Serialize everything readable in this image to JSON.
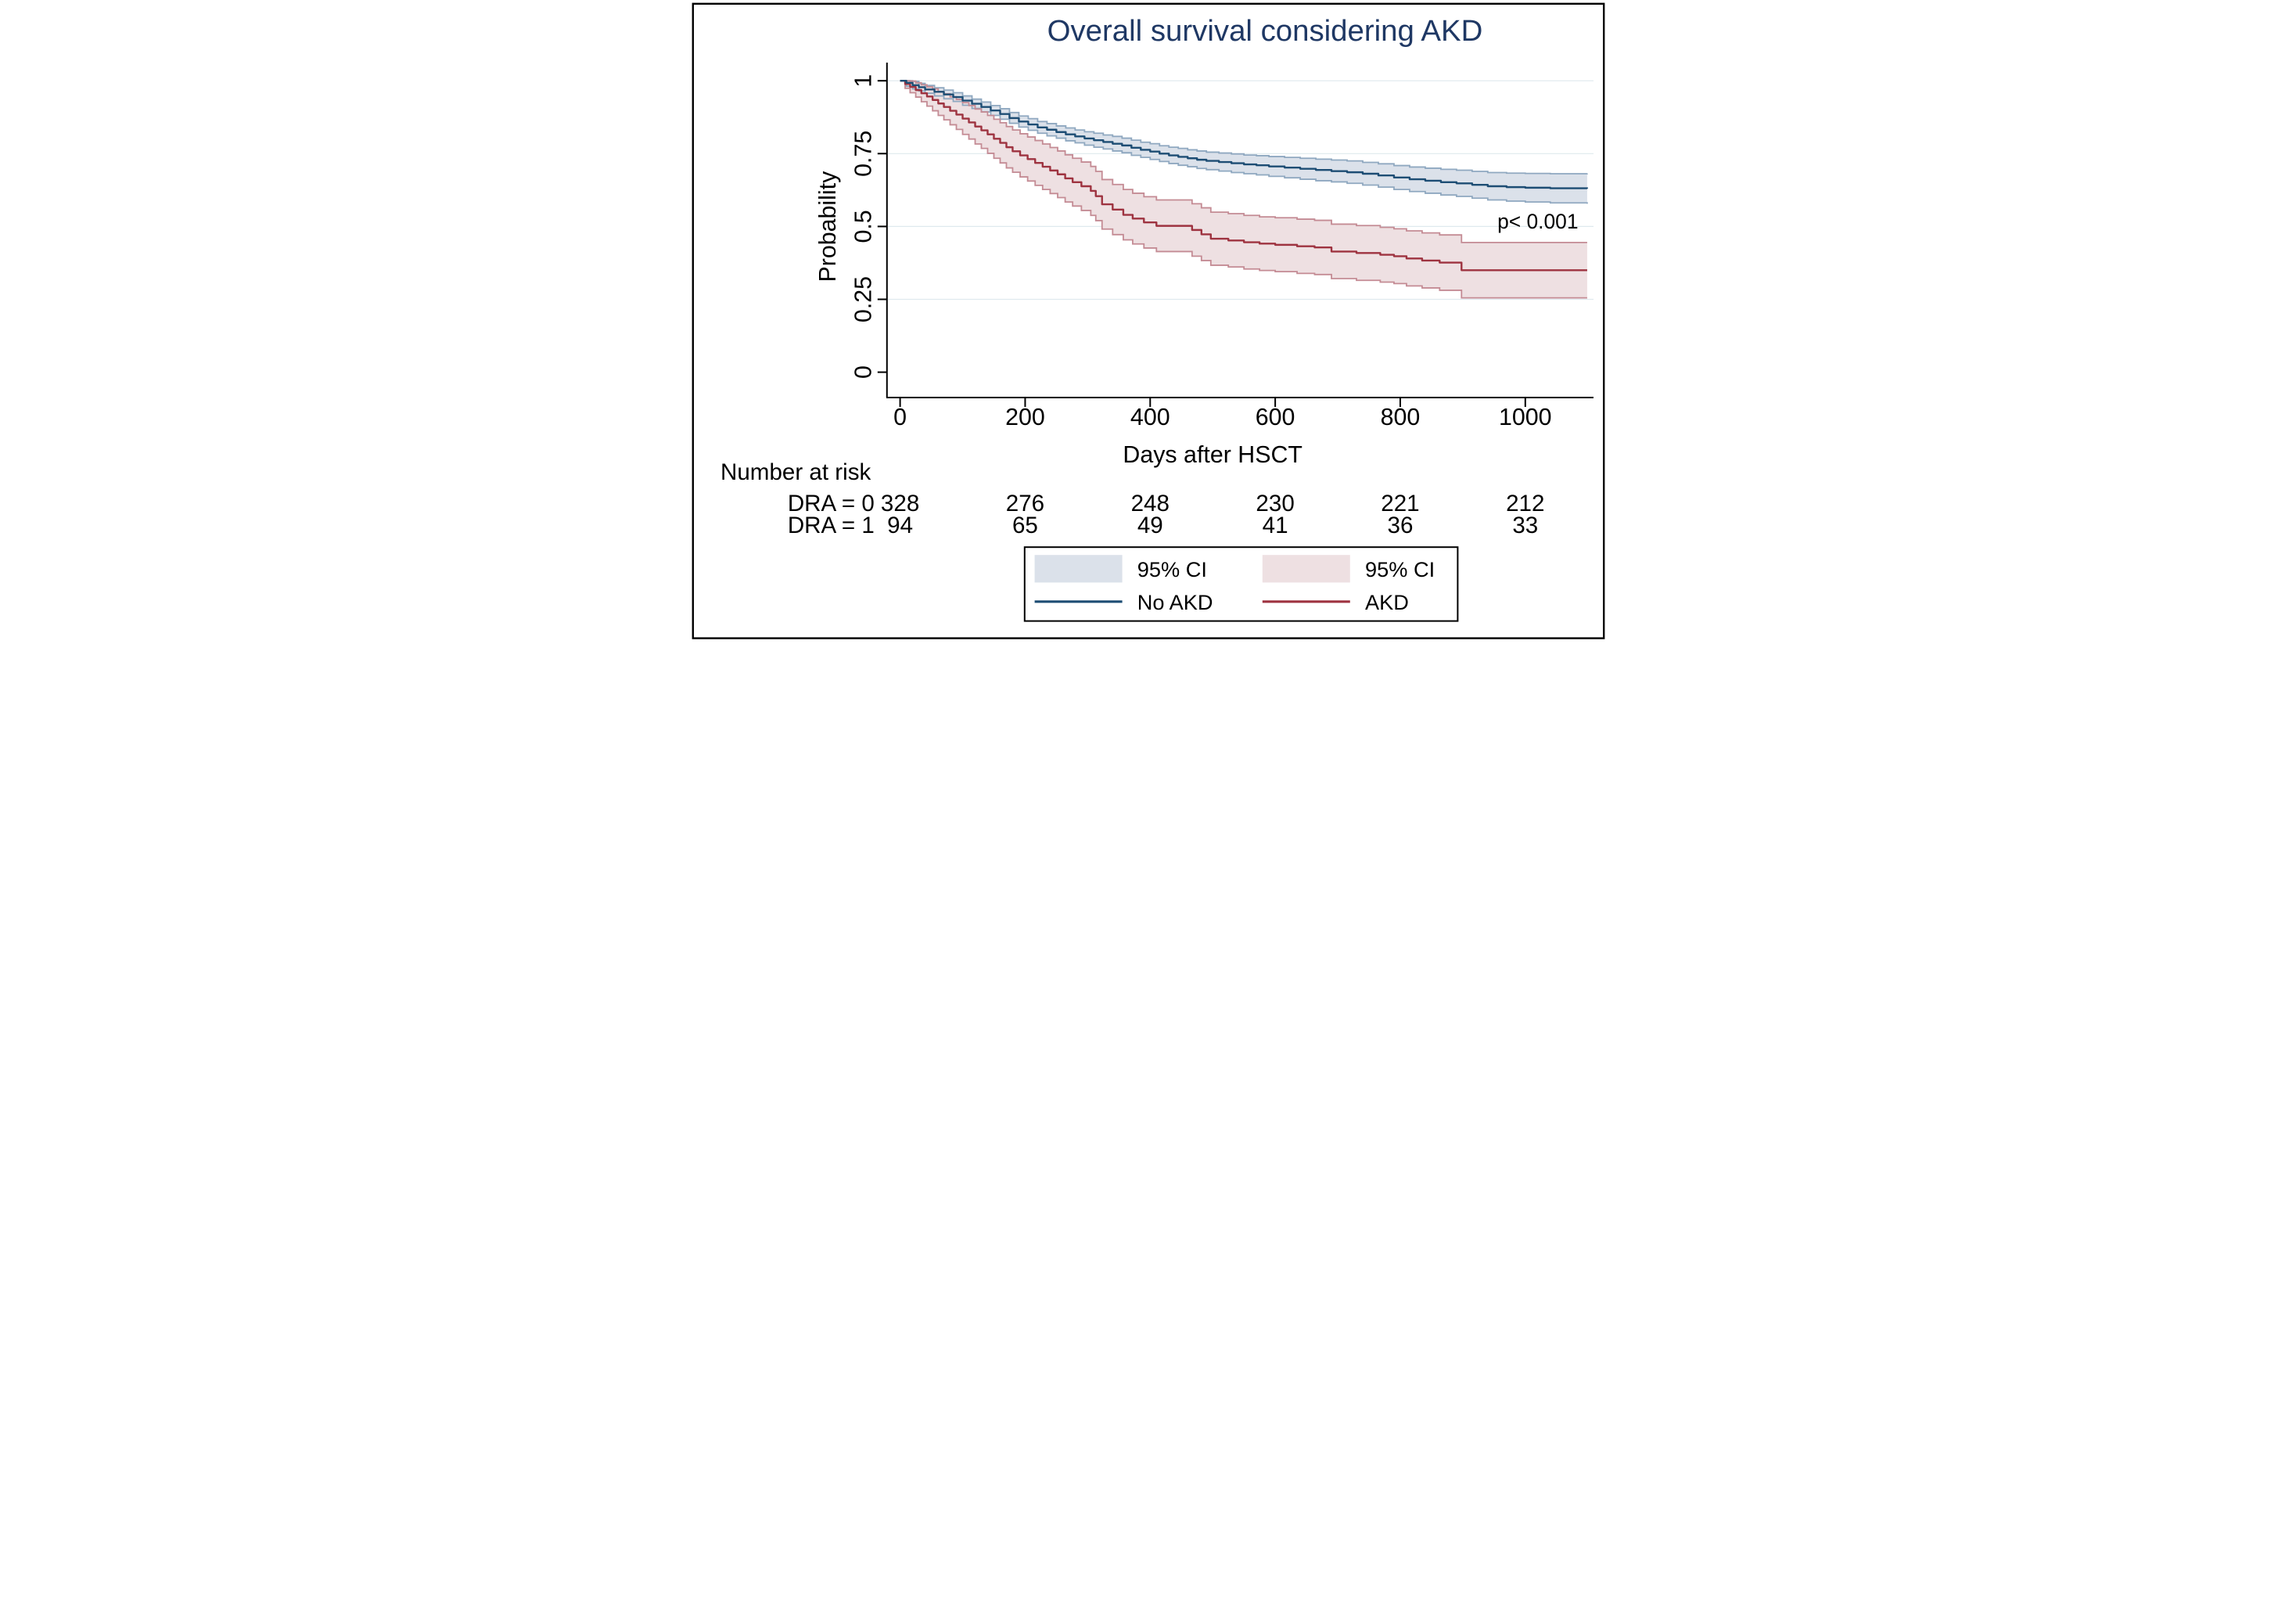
{
  "figure": {
    "title": "Overall survival considering AKD",
    "p_value_label": "p< 0.001"
  },
  "colors": {
    "title": "#1f3864",
    "text": "#000000",
    "axis": "#000000",
    "gridline": "#dfe9ee",
    "figure_border": "#000000",
    "background": "#ffffff",
    "no_akd_line": "#1d4d74",
    "no_akd_ci_edge": "#8fa8c0",
    "no_akd_ci_fill": "#dbe1ea",
    "akd_line": "#9e3340",
    "akd_ci_edge": "#c48b94",
    "akd_ci_fill": "#eee0e2"
  },
  "axes": {
    "x": {
      "label": "Days after HSCT",
      "ticks": [
        0,
        200,
        400,
        600,
        800,
        1000
      ],
      "range": [
        0,
        1099
      ]
    },
    "y": {
      "label": "Probability",
      "ticks": [
        1,
        0.75,
        0.5,
        0.25,
        0
      ],
      "tick_labels": [
        "1",
        "0.75",
        "0.5",
        "0.25",
        "0"
      ],
      "range": [
        0,
        1
      ]
    }
  },
  "chart_data": {
    "type": "line",
    "subtype": "kaplan-meier-step",
    "title": "Overall survival considering AKD",
    "xlabel": "Days after HSCT",
    "ylabel": "Probability",
    "xlim": [
      0,
      1099
    ],
    "ylim": [
      0,
      1
    ],
    "grid": "horizontal",
    "legend_position": "bottom-center",
    "annotations": [
      {
        "text": "p< 0.001",
        "x": 1020,
        "y": 0.5
      }
    ],
    "series": [
      {
        "name": "No AKD",
        "ci_label": "95% CI",
        "point_format": [
          "day",
          "survival",
          "ci_lower",
          "ci_upper"
        ],
        "points": [
          [
            0,
            1,
            1,
            1
          ],
          [
            10,
            0.993,
            0.981,
            1
          ],
          [
            20,
            0.985,
            0.972,
            0.998
          ],
          [
            30,
            0.978,
            0.965,
            0.991
          ],
          [
            40,
            0.97,
            0.957,
            0.984
          ],
          [
            55,
            0.962,
            0.948,
            0.976
          ],
          [
            70,
            0.953,
            0.938,
            0.968
          ],
          [
            85,
            0.944,
            0.929,
            0.959
          ],
          [
            100,
            0.932,
            0.916,
            0.948
          ],
          [
            115,
            0.921,
            0.905,
            0.937
          ],
          [
            130,
            0.91,
            0.893,
            0.927
          ],
          [
            145,
            0.898,
            0.881,
            0.915
          ],
          [
            160,
            0.886,
            0.868,
            0.904
          ],
          [
            175,
            0.872,
            0.854,
            0.891
          ],
          [
            190,
            0.86,
            0.841,
            0.879
          ],
          [
            205,
            0.85,
            0.83,
            0.87
          ],
          [
            220,
            0.84,
            0.82,
            0.86
          ],
          [
            235,
            0.832,
            0.811,
            0.853
          ],
          [
            250,
            0.824,
            0.803,
            0.845
          ],
          [
            265,
            0.816,
            0.794,
            0.838
          ],
          [
            280,
            0.809,
            0.787,
            0.831
          ],
          [
            295,
            0.802,
            0.779,
            0.825
          ],
          [
            310,
            0.796,
            0.772,
            0.82
          ],
          [
            325,
            0.79,
            0.766,
            0.814
          ],
          [
            340,
            0.784,
            0.759,
            0.809
          ],
          [
            355,
            0.778,
            0.753,
            0.803
          ],
          [
            370,
            0.77,
            0.744,
            0.796
          ],
          [
            385,
            0.763,
            0.737,
            0.789
          ],
          [
            400,
            0.757,
            0.73,
            0.784
          ],
          [
            415,
            0.75,
            0.723,
            0.777
          ],
          [
            430,
            0.744,
            0.716,
            0.772
          ],
          [
            445,
            0.739,
            0.71,
            0.768
          ],
          [
            460,
            0.734,
            0.705,
            0.763
          ],
          [
            475,
            0.729,
            0.699,
            0.759
          ],
          [
            490,
            0.725,
            0.695,
            0.755
          ],
          [
            510,
            0.721,
            0.69,
            0.752
          ],
          [
            530,
            0.717,
            0.685,
            0.749
          ],
          [
            550,
            0.713,
            0.681,
            0.745
          ],
          [
            570,
            0.71,
            0.677,
            0.743
          ],
          [
            590,
            0.706,
            0.672,
            0.74
          ],
          [
            615,
            0.702,
            0.667,
            0.737
          ],
          [
            640,
            0.698,
            0.662,
            0.734
          ],
          [
            665,
            0.694,
            0.657,
            0.731
          ],
          [
            690,
            0.69,
            0.653,
            0.728
          ],
          [
            715,
            0.686,
            0.648,
            0.725
          ],
          [
            740,
            0.681,
            0.642,
            0.72
          ],
          [
            765,
            0.675,
            0.635,
            0.715
          ],
          [
            790,
            0.668,
            0.627,
            0.709
          ],
          [
            815,
            0.662,
            0.62,
            0.704
          ],
          [
            840,
            0.657,
            0.614,
            0.7
          ],
          [
            865,
            0.652,
            0.608,
            0.696
          ],
          [
            890,
            0.648,
            0.603,
            0.693
          ],
          [
            915,
            0.643,
            0.597,
            0.689
          ],
          [
            940,
            0.638,
            0.591,
            0.685
          ],
          [
            970,
            0.635,
            0.587,
            0.683
          ],
          [
            1000,
            0.633,
            0.584,
            0.682
          ],
          [
            1040,
            0.631,
            0.581,
            0.681
          ],
          [
            1099,
            0.63,
            0.578,
            0.682
          ]
        ]
      },
      {
        "name": "AKD",
        "ci_label": "95% CI",
        "point_format": [
          "day",
          "survival",
          "ci_lower",
          "ci_upper"
        ],
        "points": [
          [
            0,
            1,
            1,
            1
          ],
          [
            8,
            0.989,
            0.974,
            1
          ],
          [
            16,
            0.979,
            0.959,
            0.999
          ],
          [
            25,
            0.968,
            0.944,
            0.993
          ],
          [
            34,
            0.957,
            0.928,
            0.986
          ],
          [
            43,
            0.946,
            0.913,
            0.979
          ],
          [
            52,
            0.934,
            0.897,
            0.972
          ],
          [
            61,
            0.922,
            0.881,
            0.963
          ],
          [
            70,
            0.91,
            0.866,
            0.955
          ],
          [
            80,
            0.897,
            0.849,
            0.945
          ],
          [
            90,
            0.884,
            0.833,
            0.936
          ],
          [
            100,
            0.87,
            0.816,
            0.925
          ],
          [
            110,
            0.857,
            0.8,
            0.915
          ],
          [
            120,
            0.843,
            0.783,
            0.903
          ],
          [
            130,
            0.83,
            0.768,
            0.893
          ],
          [
            140,
            0.816,
            0.751,
            0.881
          ],
          [
            150,
            0.801,
            0.734,
            0.868
          ],
          [
            160,
            0.787,
            0.718,
            0.856
          ],
          [
            170,
            0.772,
            0.701,
            0.843
          ],
          [
            180,
            0.758,
            0.686,
            0.831
          ],
          [
            192,
            0.744,
            0.67,
            0.818
          ],
          [
            204,
            0.731,
            0.656,
            0.807
          ],
          [
            216,
            0.718,
            0.641,
            0.795
          ],
          [
            228,
            0.705,
            0.627,
            0.783
          ],
          [
            240,
            0.692,
            0.613,
            0.771
          ],
          [
            252,
            0.679,
            0.599,
            0.759
          ],
          [
            264,
            0.665,
            0.584,
            0.746
          ],
          [
            276,
            0.652,
            0.57,
            0.734
          ],
          [
            290,
            0.638,
            0.555,
            0.721
          ],
          [
            305,
            0.622,
            0.538,
            0.706
          ],
          [
            313,
            0.604,
            0.52,
            0.689
          ],
          [
            323,
            0.576,
            0.491,
            0.661
          ],
          [
            340,
            0.558,
            0.472,
            0.644
          ],
          [
            357,
            0.54,
            0.454,
            0.627
          ],
          [
            372,
            0.527,
            0.44,
            0.614
          ],
          [
            390,
            0.514,
            0.426,
            0.602
          ],
          [
            410,
            0.502,
            0.414,
            0.591
          ],
          [
            467,
            0.488,
            0.398,
            0.578
          ],
          [
            482,
            0.473,
            0.383,
            0.564
          ],
          [
            497,
            0.458,
            0.367,
            0.549
          ],
          [
            525,
            0.452,
            0.361,
            0.544
          ],
          [
            550,
            0.446,
            0.354,
            0.538
          ],
          [
            575,
            0.441,
            0.349,
            0.533
          ],
          [
            600,
            0.437,
            0.345,
            0.53
          ],
          [
            635,
            0.432,
            0.339,
            0.525
          ],
          [
            663,
            0.428,
            0.335,
            0.521
          ],
          [
            690,
            0.414,
            0.321,
            0.508
          ],
          [
            730,
            0.409,
            0.315,
            0.503
          ],
          [
            768,
            0.403,
            0.309,
            0.497
          ],
          [
            790,
            0.398,
            0.304,
            0.492
          ],
          [
            810,
            0.39,
            0.296,
            0.485
          ],
          [
            835,
            0.383,
            0.289,
            0.478
          ],
          [
            863,
            0.376,
            0.281,
            0.471
          ],
          [
            898,
            0.35,
            0.255,
            0.445
          ],
          [
            1099,
            0.35,
            0.255,
            0.445
          ]
        ]
      }
    ]
  },
  "risk_table": {
    "heading": "Number at risk",
    "time_points": [
      0,
      200,
      400,
      600,
      800,
      1000
    ],
    "rows": [
      {
        "label": "DRA = 0",
        "values": [
          "328",
          "276",
          "248",
          "230",
          "221",
          "212"
        ]
      },
      {
        "label": "DRA = 1",
        "values": [
          "94",
          "65",
          "49",
          "41",
          "36",
          "33"
        ]
      }
    ]
  },
  "legend": {
    "items": [
      {
        "swatch": "fill",
        "series": 0,
        "label": "95% CI"
      },
      {
        "swatch": "fill",
        "series": 1,
        "label": "95% CI"
      },
      {
        "swatch": "line",
        "series": 0,
        "label": "No AKD"
      },
      {
        "swatch": "line",
        "series": 1,
        "label": "AKD"
      }
    ]
  }
}
